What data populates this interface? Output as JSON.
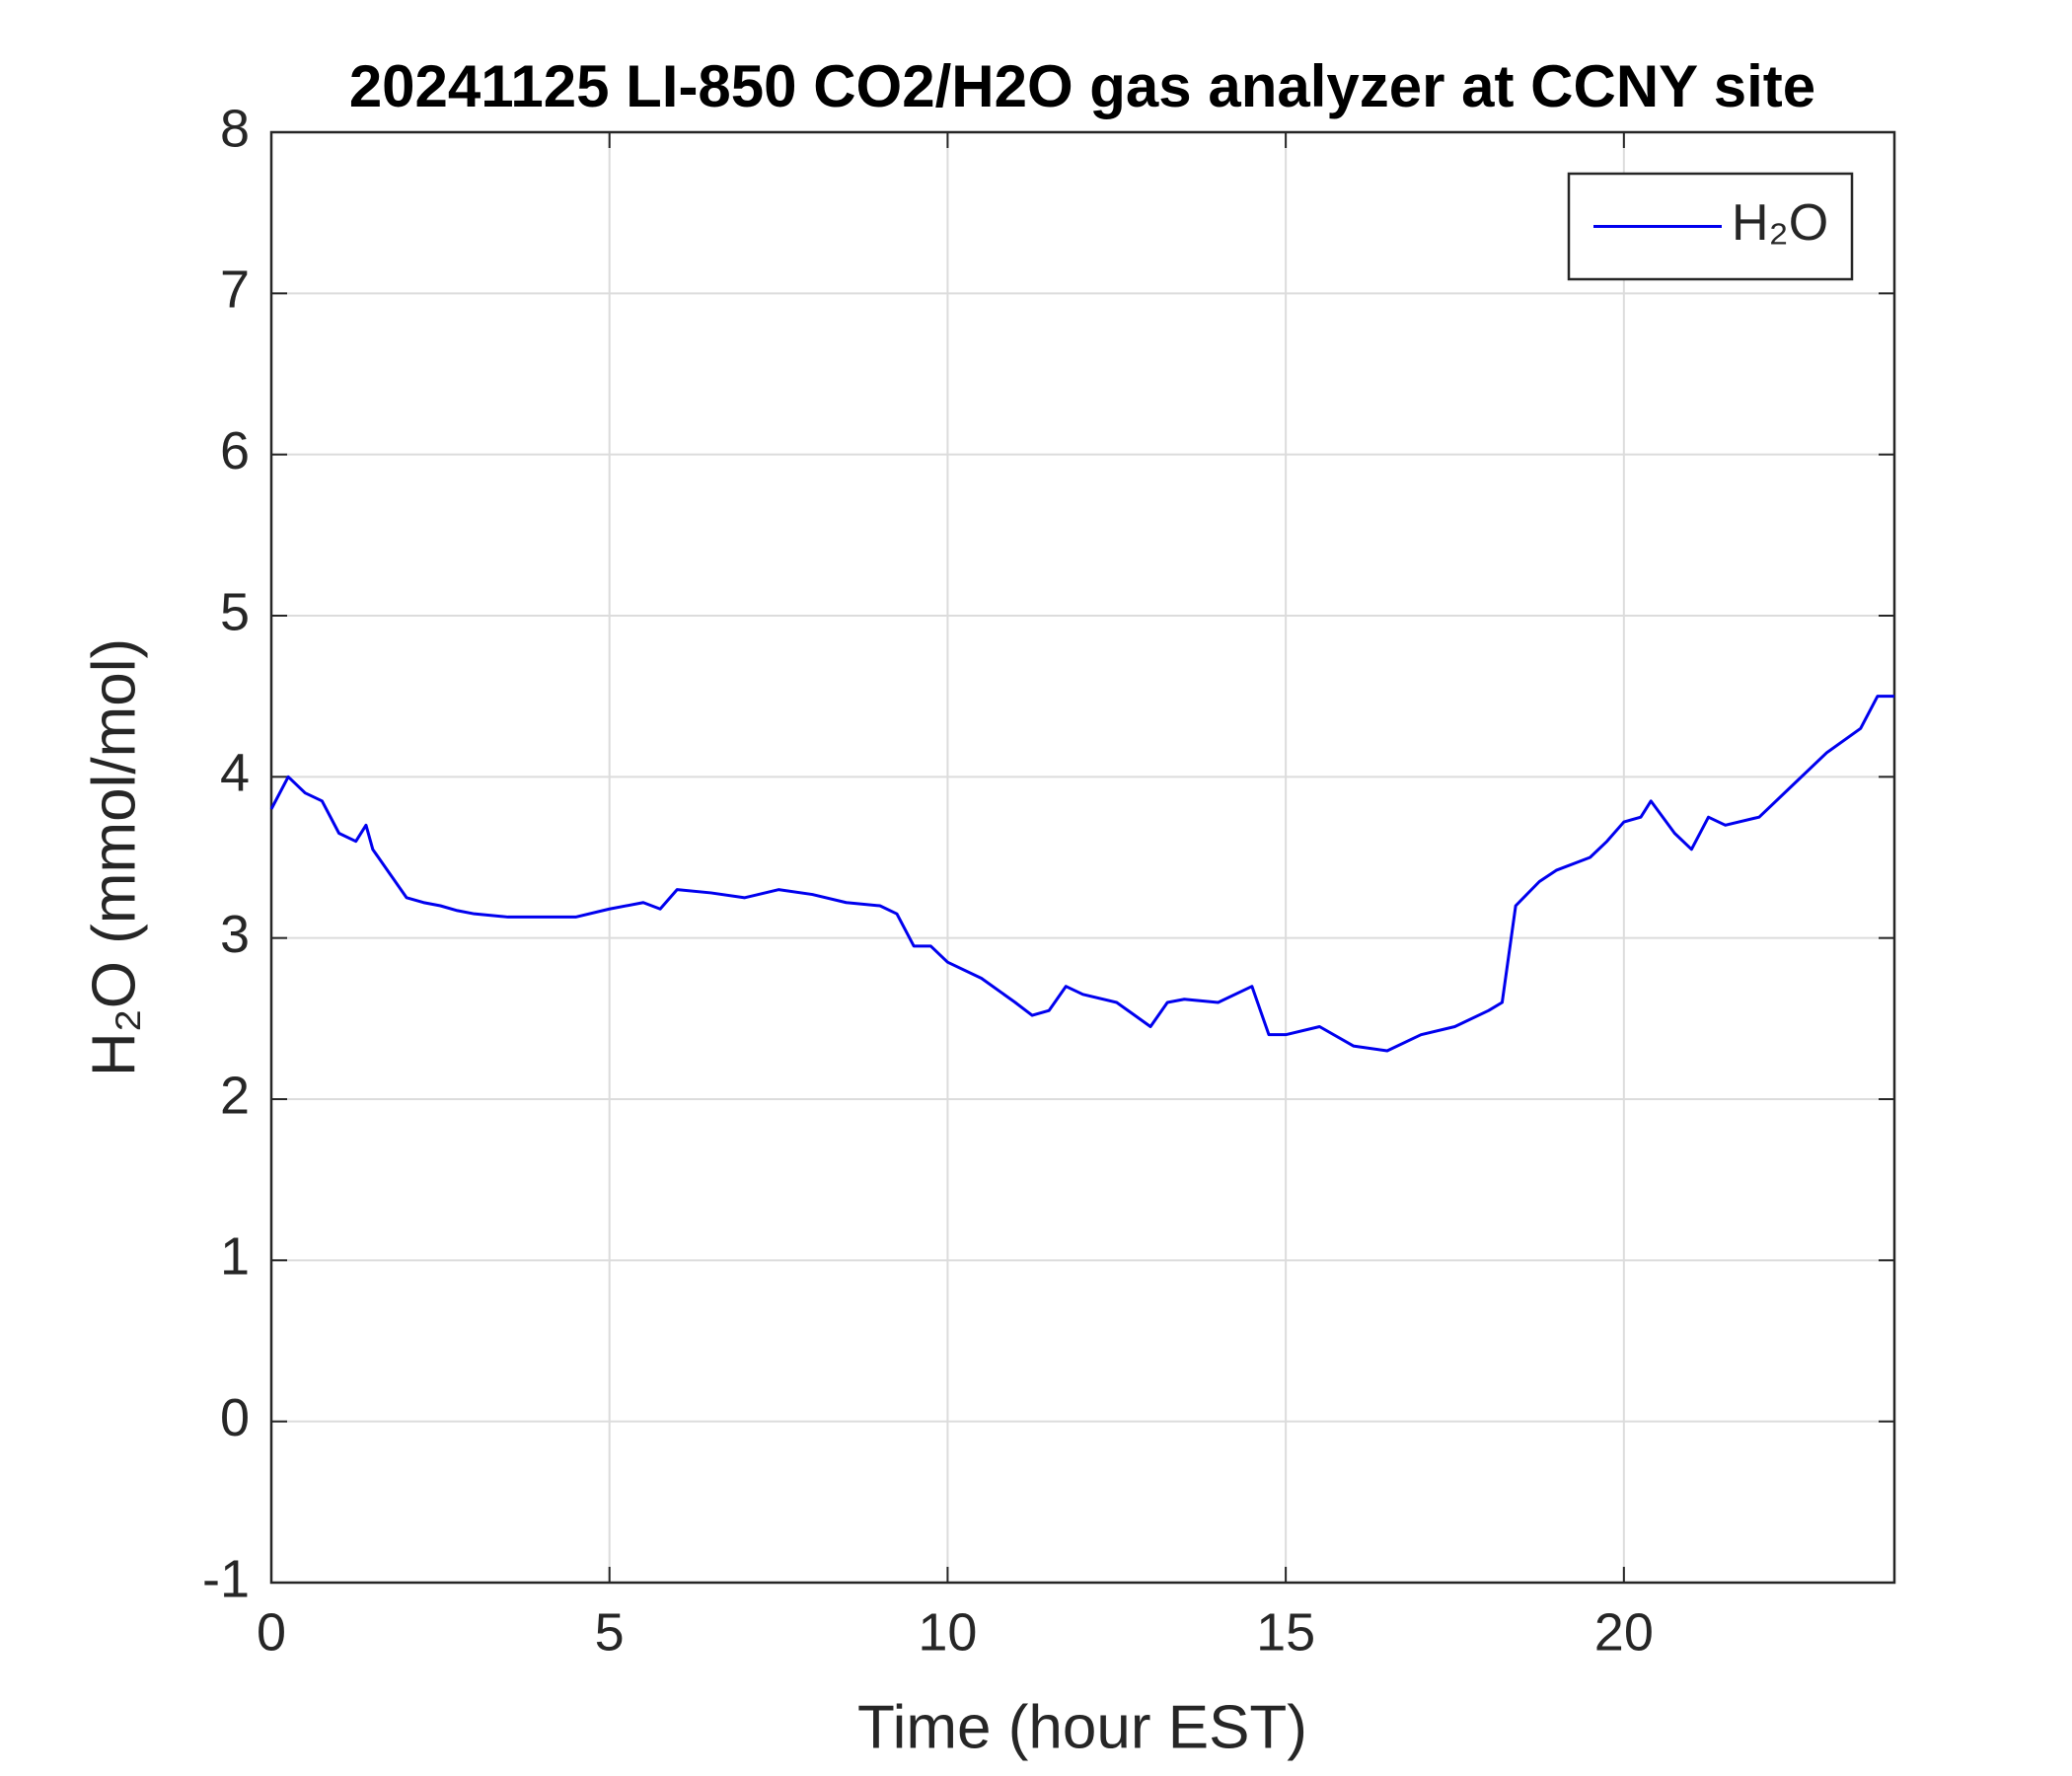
{
  "chart_data": {
    "type": "line",
    "title": "20241125 LI-850 CO2/H2O gas analyzer at CCNY site",
    "xlabel": "Time (hour EST)",
    "ylabel": "H₂O (mmol/mol)",
    "x": [
      0,
      0.25,
      0.5,
      0.75,
      1.0,
      1.25,
      1.4,
      1.5,
      1.75,
      2.0,
      2.25,
      2.5,
      2.75,
      3.0,
      3.5,
      4.0,
      4.5,
      5.0,
      5.5,
      5.75,
      6.0,
      6.5,
      7.0,
      7.5,
      8.0,
      8.5,
      9.0,
      9.25,
      9.5,
      9.75,
      10.0,
      10.5,
      11.0,
      11.25,
      11.5,
      11.75,
      12.0,
      12.5,
      13.0,
      13.25,
      13.5,
      14.0,
      14.5,
      14.75,
      15.0,
      15.5,
      16.0,
      16.5,
      17.0,
      17.5,
      18.0,
      18.2,
      18.4,
      18.75,
      19.0,
      19.5,
      19.75,
      20.0,
      20.25,
      20.4,
      20.75,
      21.0,
      21.25,
      21.5,
      22.0,
      22.5,
      23.0,
      23.5,
      23.75,
      24.0
    ],
    "series": [
      {
        "name": "H₂O",
        "color": "#0000ee",
        "values": [
          3.8,
          4.0,
          3.9,
          3.85,
          3.65,
          3.6,
          3.7,
          3.55,
          3.4,
          3.25,
          3.22,
          3.2,
          3.17,
          3.15,
          3.13,
          3.13,
          3.13,
          3.18,
          3.22,
          3.18,
          3.3,
          3.28,
          3.25,
          3.3,
          3.27,
          3.22,
          3.2,
          3.15,
          2.95,
          2.95,
          2.85,
          2.75,
          2.6,
          2.52,
          2.55,
          2.7,
          2.65,
          2.6,
          2.45,
          2.6,
          2.62,
          2.6,
          2.7,
          2.4,
          2.4,
          2.45,
          2.33,
          2.3,
          2.4,
          2.45,
          2.55,
          2.6,
          3.2,
          3.35,
          3.42,
          3.5,
          3.6,
          3.72,
          3.75,
          3.85,
          3.65,
          3.55,
          3.75,
          3.7,
          3.75,
          3.95,
          4.15,
          4.3,
          4.5,
          4.5
        ]
      }
    ],
    "xlim": [
      0,
      24
    ],
    "xticks": [
      0,
      5,
      10,
      15,
      20
    ],
    "ylim": [
      -1,
      8
    ],
    "yticks": [
      -1,
      0,
      1,
      2,
      3,
      4,
      5,
      6,
      7,
      8
    ],
    "grid": true,
    "legend": "upper right"
  }
}
